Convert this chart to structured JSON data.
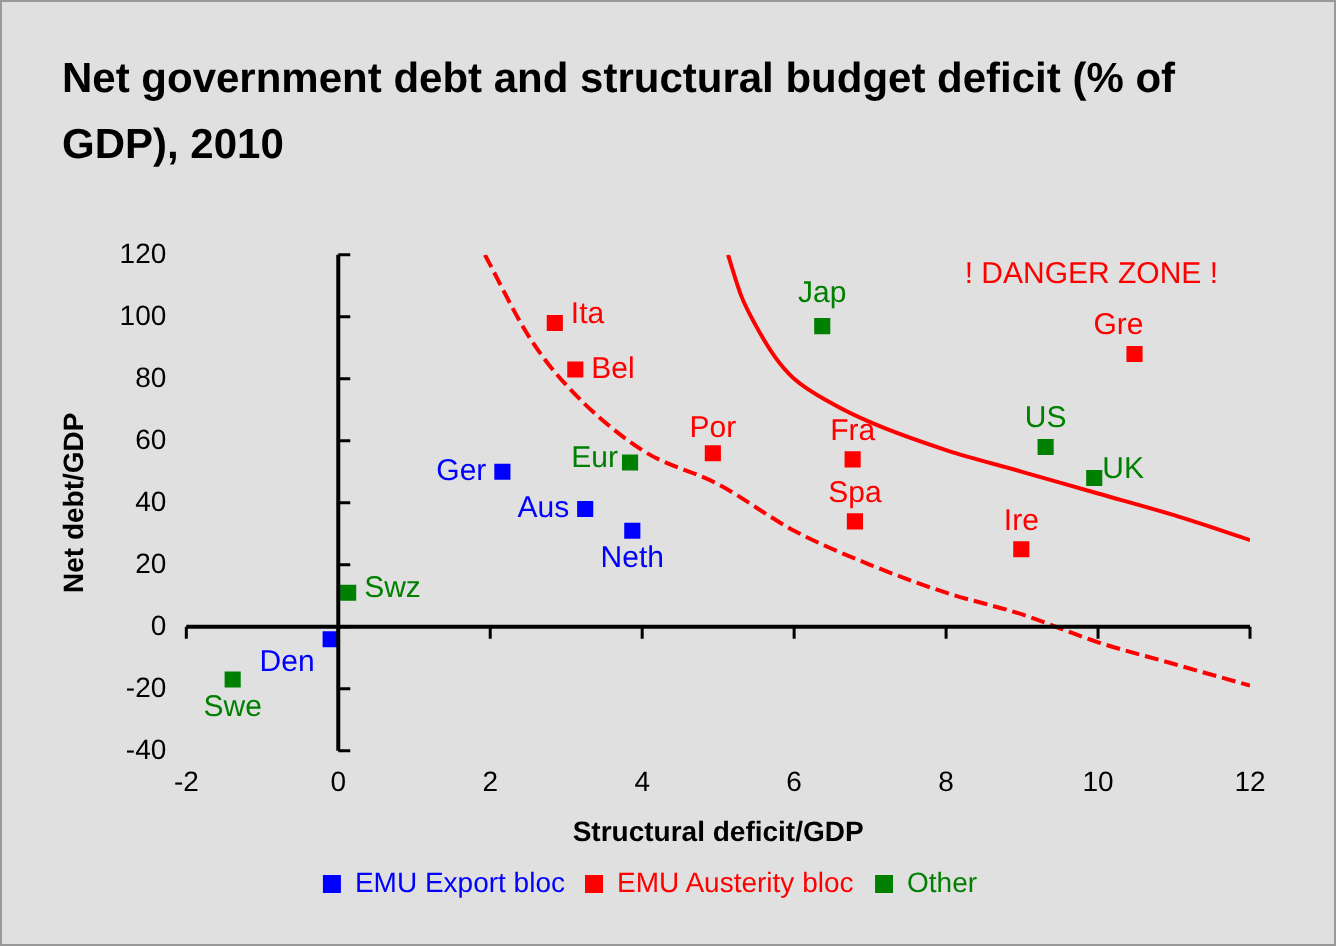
{
  "chart_data": {
    "type": "scatter",
    "title": "Net government debt and structural budget deficit (% of GDP), 2010",
    "xlabel": "Structural deficit/GDP",
    "ylabel": "Net debt/GDP",
    "series": [
      {
        "name": "EMU Export bloc",
        "color": "#0000ff",
        "x": [
          2.16,
          3.25,
          3.87,
          -0.1
        ],
        "values": [
          50,
          38,
          31,
          -4
        ]
      },
      {
        "name": "EMU Austerity bloc",
        "color": "#ff0000",
        "x": [
          2.85,
          3.12,
          4.93,
          6.77,
          6.8,
          8.99,
          10.48
        ],
        "values": [
          98,
          83,
          56,
          54,
          34,
          25,
          88
        ]
      },
      {
        "name": "Other",
        "color": "#008000",
        "x": [
          3.84,
          0.13,
          -1.39,
          6.37,
          9.31,
          9.95
        ],
        "values": [
          53,
          11,
          -17,
          97,
          58,
          48
        ]
      },
      {
        "type": "line",
        "color": "#ff0000",
        "line_style": "solid",
        "marker": "none",
        "x": [
          5.13,
          5.3,
          5.5,
          5.75,
          6,
          6.5,
          7,
          8,
          9,
          10,
          11,
          12
        ],
        "values": [
          120,
          107,
          97,
          87,
          80,
          72,
          66,
          57,
          50,
          43,
          36,
          28
        ]
      },
      {
        "type": "line",
        "color": "#ff0000",
        "line_style": "dashed",
        "marker": "none",
        "x": [
          1.93,
          2.5,
          3,
          4,
          5,
          6,
          7,
          8,
          9,
          10,
          11,
          12
        ],
        "values": [
          120,
          94,
          78,
          57,
          46,
          31,
          20,
          11,
          4,
          -5,
          -12,
          -19
        ]
      }
    ],
    "annotations": [
      {
        "text": "Ger",
        "x": 2.16,
        "y": 50
      },
      {
        "text": "Aus",
        "x": 3.25,
        "y": 38
      },
      {
        "text": "Neth",
        "x": 3.87,
        "y": 31
      },
      {
        "text": "Den",
        "x": -0.1,
        "y": -4
      },
      {
        "text": "Ita",
        "x": 2.85,
        "y": 98
      },
      {
        "text": "Bel",
        "x": 3.12,
        "y": 83
      },
      {
        "text": "Por",
        "x": 4.93,
        "y": 56
      },
      {
        "text": "Fra",
        "x": 6.77,
        "y": 54
      },
      {
        "text": "Spa",
        "x": 6.8,
        "y": 34
      },
      {
        "text": "Ire",
        "x": 8.99,
        "y": 25
      },
      {
        "text": "Gre",
        "x": 10.48,
        "y": 88
      },
      {
        "text": "Eur",
        "x": 3.84,
        "y": 53
      },
      {
        "text": "Swz",
        "x": 0.13,
        "y": 11
      },
      {
        "text": "Swe",
        "x": -1.39,
        "y": -17
      },
      {
        "text": "Jap",
        "x": 6.37,
        "y": 97
      },
      {
        "text": "US",
        "x": 9.31,
        "y": 58
      },
      {
        "text": "UK",
        "x": 9.95,
        "y": 48
      },
      "! DANGER ZONE !"
    ],
    "xlim": [
      -2,
      12
    ],
    "xticks": [
      -2,
      0,
      2,
      4,
      6,
      8,
      10,
      12
    ],
    "ylim": [
      -40,
      120
    ],
    "yticks": [
      -40,
      -20,
      0,
      20,
      40,
      60,
      80,
      100,
      120
    ],
    "legend": "bottom",
    "marker": "square"
  }
}
